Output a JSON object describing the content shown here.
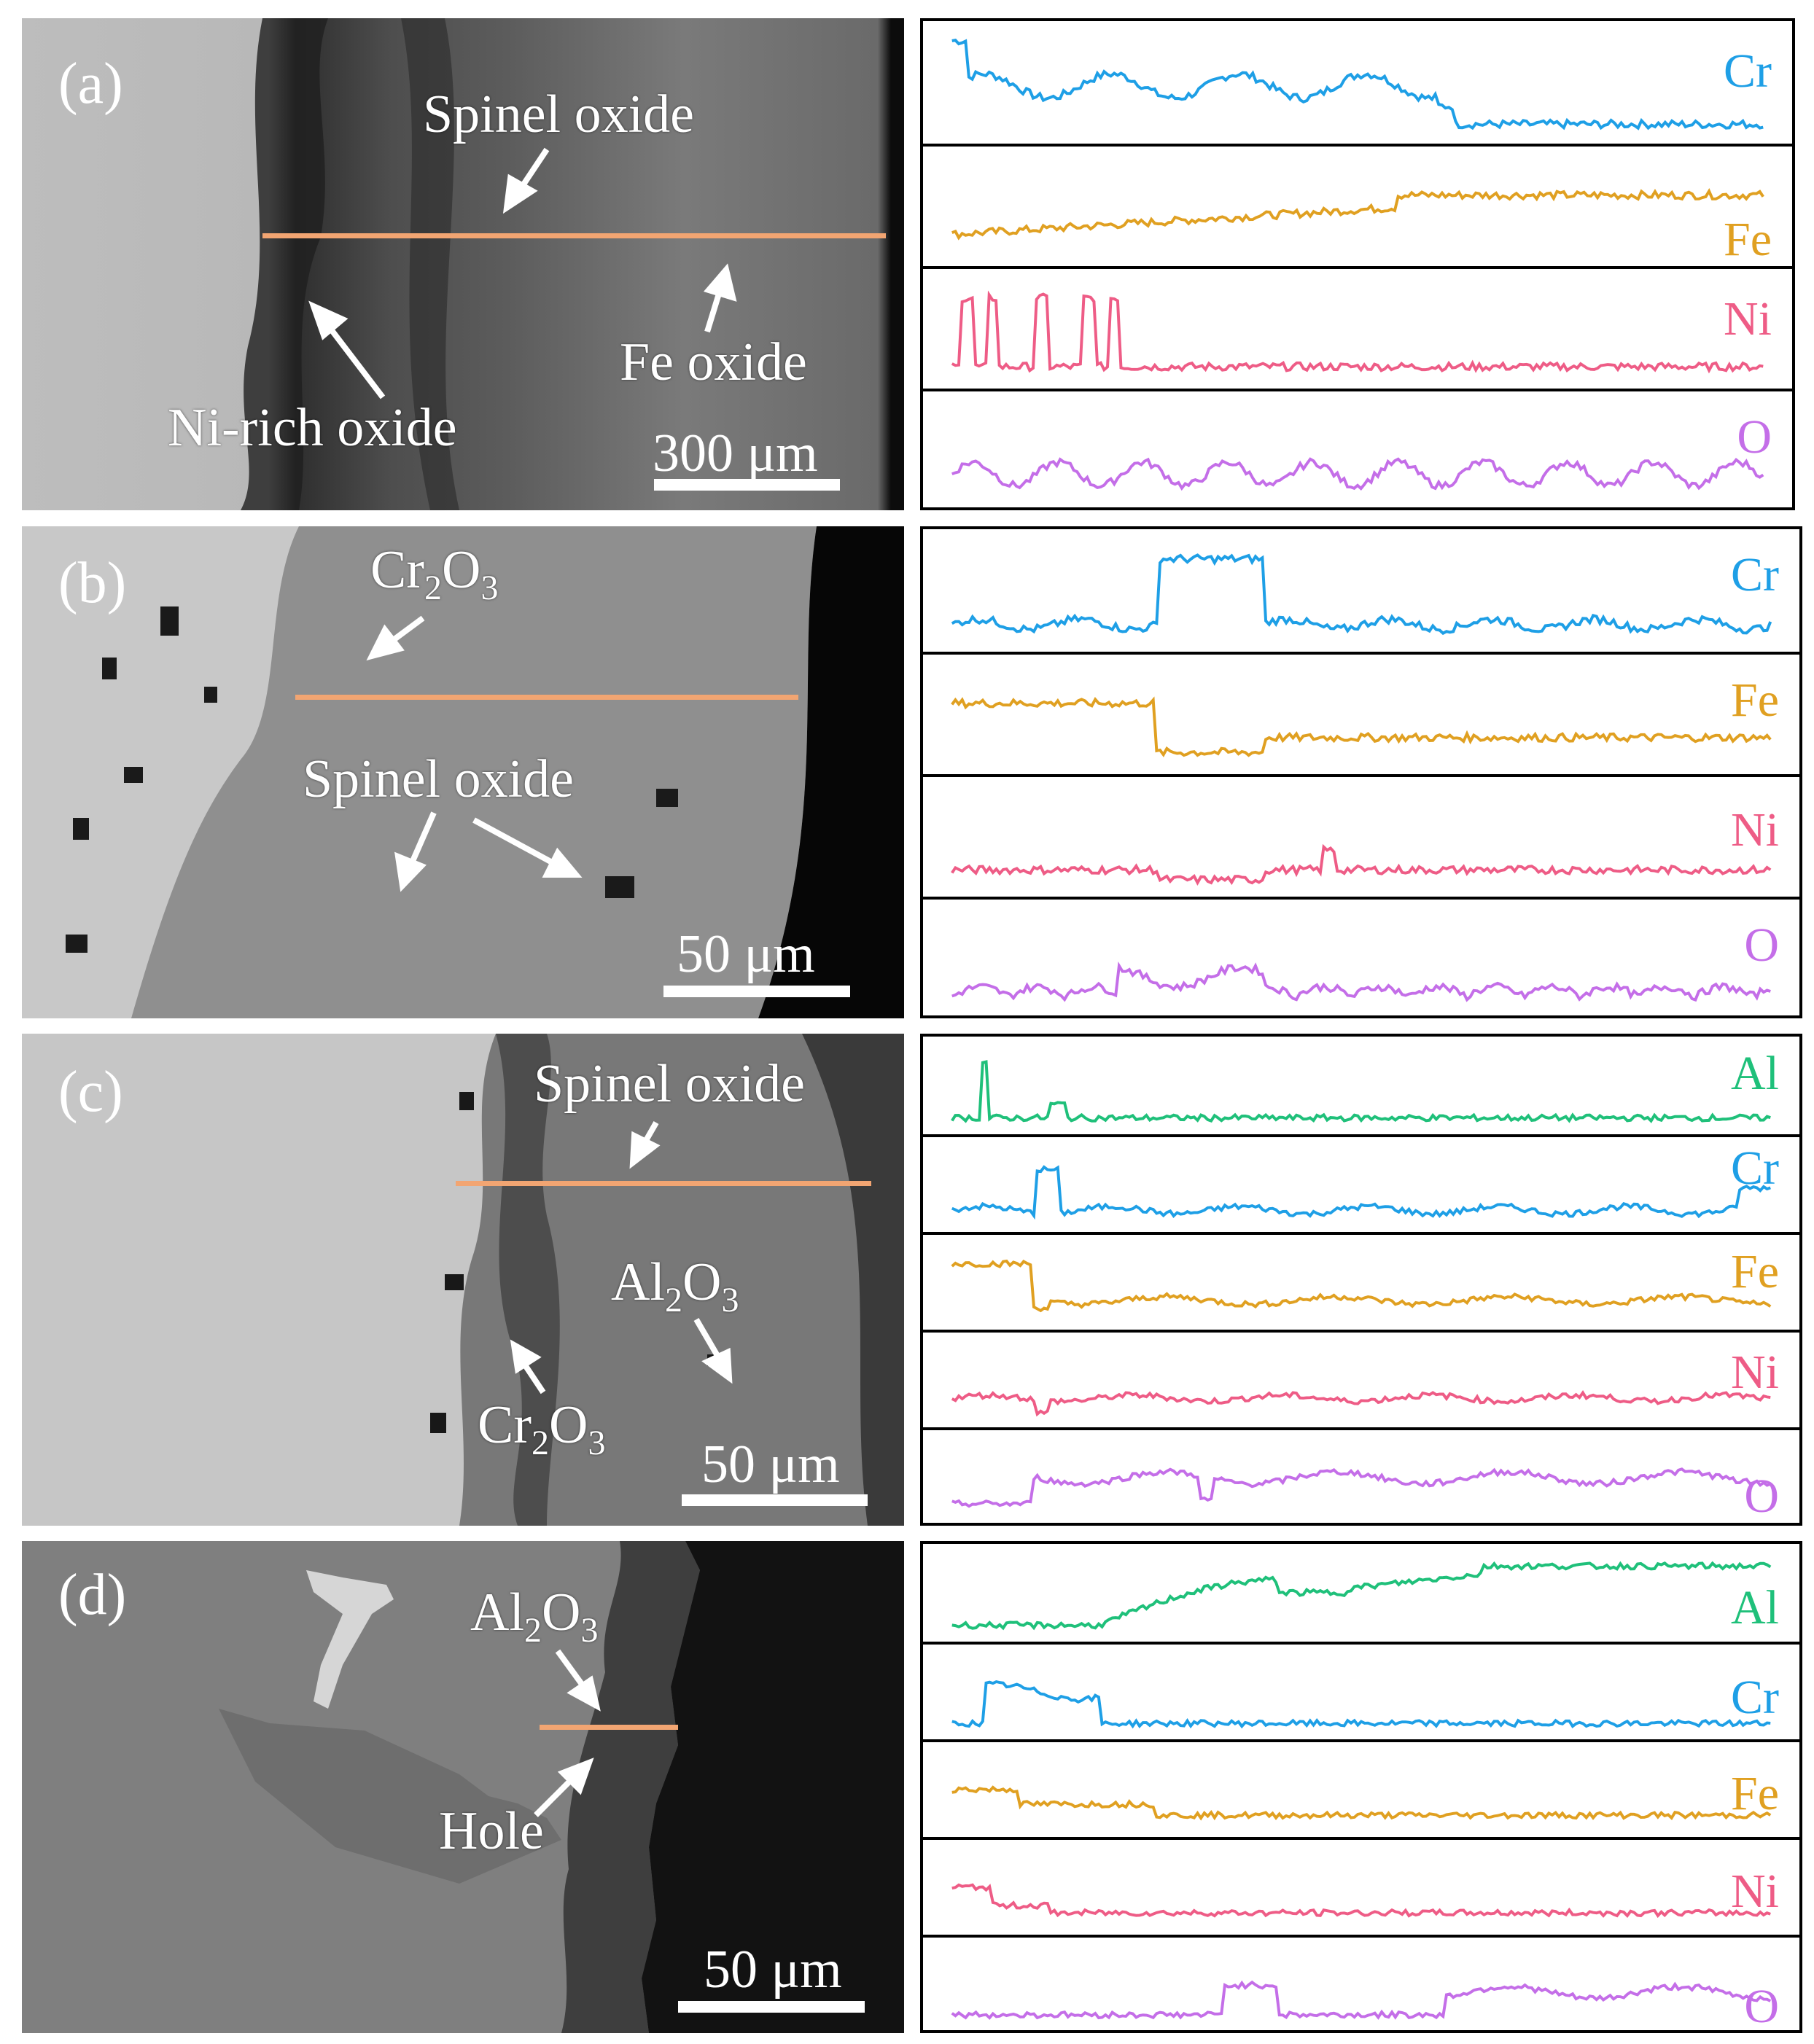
{
  "colors": {
    "Cr": "#1e9fe6",
    "Fe": "#e0a021",
    "Ni": "#ee5c86",
    "O": "#c46ee8",
    "Al": "#1fc07a",
    "line_scan": "#f2a572"
  },
  "panels": [
    {
      "id": "a",
      "label": "(a)",
      "annotations": [
        "Spinel oxide",
        "Fe oxide",
        "Ni-rich oxide"
      ],
      "scale": "300 μm",
      "elements": [
        "Cr",
        "Fe",
        "Ni",
        "O"
      ]
    },
    {
      "id": "b",
      "label": "(b)",
      "annotations": [
        "Cr",
        "2",
        "O",
        "3",
        "Spinel oxide"
      ],
      "scale": "50 μm",
      "elements": [
        "Cr",
        "Fe",
        "Ni",
        "O"
      ]
    },
    {
      "id": "c",
      "label": "(c)",
      "annotations": [
        "Spinel oxide",
        "Al",
        "2",
        "O",
        "3",
        "Cr",
        "2",
        "O",
        "3"
      ],
      "scale": "50 μm",
      "elements": [
        "Al",
        "Cr",
        "Fe",
        "Ni",
        "O"
      ]
    },
    {
      "id": "d",
      "label": "(d)",
      "annotations": [
        "Al",
        "2",
        "O",
        "3",
        "Hole"
      ],
      "scale": "50 μm",
      "elements": [
        "Al",
        "Cr",
        "Fe",
        "Ni",
        "O"
      ]
    }
  ]
}
